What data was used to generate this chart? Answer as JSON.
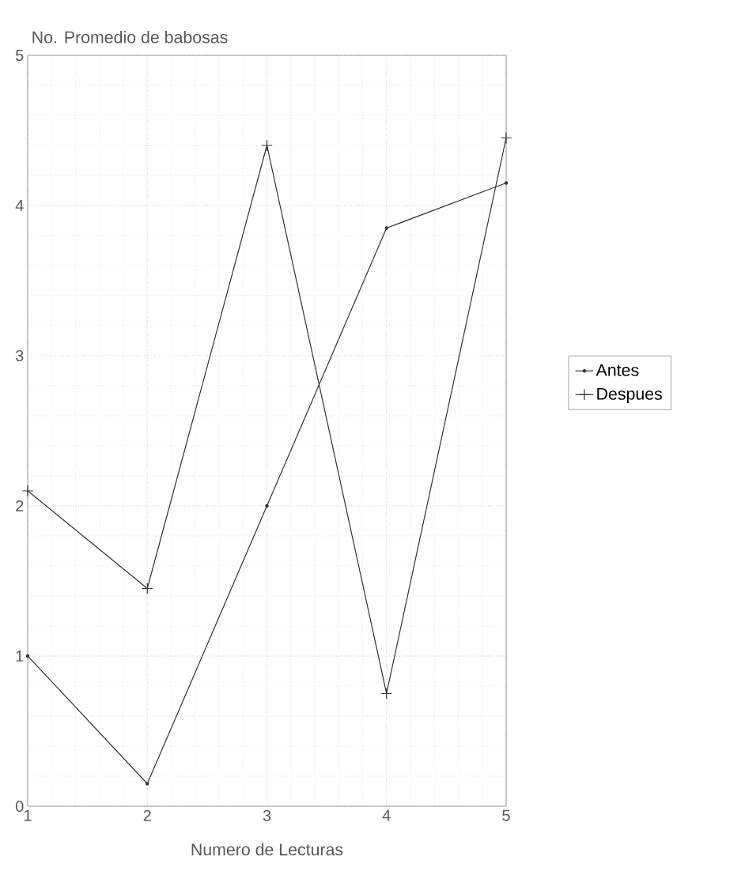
{
  "chart_data": {
    "type": "line",
    "xlabel": "Numero de Lecturas",
    "ylabel": "No. Promedio de babosas",
    "x": [
      1,
      2,
      3,
      4,
      5
    ],
    "series": [
      {
        "name": "Antes",
        "color": "#333333",
        "marker": "circle",
        "values": [
          1.0,
          0.15,
          2.0,
          3.85,
          4.15
        ]
      },
      {
        "name": "Despues",
        "color": "#333333",
        "marker": "cross",
        "values": [
          2.1,
          1.45,
          4.4,
          0.75,
          4.45
        ]
      }
    ],
    "xlim": [
      1,
      5
    ],
    "ylim": [
      0,
      5
    ],
    "xticks": [
      1,
      2,
      3,
      4,
      5
    ],
    "yticks": [
      0,
      1,
      2,
      3,
      4,
      5
    ],
    "grid": true,
    "legend": "right",
    "line_style": "solid"
  }
}
